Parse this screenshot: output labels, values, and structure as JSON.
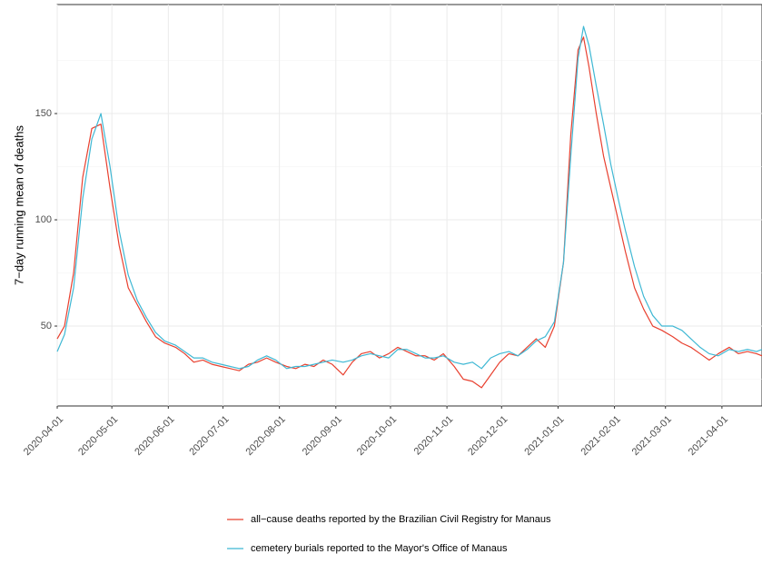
{
  "chart_data": {
    "type": "line",
    "y_label": "7−day running mean of deaths",
    "xlim": [
      "2020-04-01",
      "2021-04-23"
    ],
    "xticks": [
      "2020-04-01",
      "2020-05-01",
      "2020-06-01",
      "2020-07-01",
      "2020-08-01",
      "2020-09-01",
      "2020-10-01",
      "2020-11-01",
      "2020-12-01",
      "2021-01-01",
      "2021-02-01",
      "2021-03-01",
      "2021-04-01"
    ],
    "ylim": [
      12.4,
      201.3
    ],
    "yticks": [
      50,
      100,
      150
    ],
    "minor_yticks": [
      25,
      75,
      125,
      175
    ],
    "grid": true,
    "legend_position": "bottom",
    "x": [
      "2020-04-01",
      "2020-04-05",
      "2020-04-10",
      "2020-04-15",
      "2020-04-20",
      "2020-04-25",
      "2020-04-30",
      "2020-05-05",
      "2020-05-10",
      "2020-05-15",
      "2020-05-20",
      "2020-05-25",
      "2020-05-30",
      "2020-06-05",
      "2020-06-10",
      "2020-06-15",
      "2020-06-20",
      "2020-06-25",
      "2020-06-30",
      "2020-07-05",
      "2020-07-10",
      "2020-07-15",
      "2020-07-20",
      "2020-07-25",
      "2020-07-30",
      "2020-08-05",
      "2020-08-10",
      "2020-08-15",
      "2020-08-20",
      "2020-08-25",
      "2020-08-30",
      "2020-09-05",
      "2020-09-10",
      "2020-09-15",
      "2020-09-20",
      "2020-09-25",
      "2020-09-30",
      "2020-10-05",
      "2020-10-10",
      "2020-10-15",
      "2020-10-20",
      "2020-10-25",
      "2020-10-30",
      "2020-11-05",
      "2020-11-10",
      "2020-11-15",
      "2020-11-20",
      "2020-11-25",
      "2020-11-30",
      "2020-12-05",
      "2020-12-10",
      "2020-12-15",
      "2020-12-20",
      "2020-12-25",
      "2020-12-30",
      "2021-01-04",
      "2021-01-08",
      "2021-01-12",
      "2021-01-15",
      "2021-01-18",
      "2021-01-22",
      "2021-01-26",
      "2021-01-30",
      "2021-02-03",
      "2021-02-07",
      "2021-02-12",
      "2021-02-17",
      "2021-02-22",
      "2021-02-27",
      "2021-03-05",
      "2021-03-10",
      "2021-03-15",
      "2021-03-20",
      "2021-03-25",
      "2021-03-30",
      "2021-04-05",
      "2021-04-10",
      "2021-04-15",
      "2021-04-20",
      "2021-04-23"
    ],
    "series": [
      {
        "name": "all−cause deaths reported by the Brazilian Civil Registry for Manaus",
        "color": "#e8402f",
        "values": [
          44,
          50,
          75,
          120,
          143,
          145,
          115,
          88,
          68,
          60,
          52,
          45,
          42,
          40,
          37,
          33,
          34,
          32,
          31,
          30,
          29,
          32,
          33,
          35,
          33,
          31,
          30,
          32,
          31,
          34,
          32,
          27,
          33,
          37,
          38,
          35,
          37,
          40,
          38,
          36,
          36,
          34,
          37,
          31,
          25,
          24,
          21,
          27,
          33,
          37,
          36,
          40,
          44,
          40,
          50,
          80,
          140,
          180,
          186,
          172,
          150,
          130,
          115,
          100,
          85,
          68,
          58,
          50,
          48,
          45,
          42,
          40,
          37,
          34,
          37,
          40,
          37,
          38,
          37,
          36
        ]
      },
      {
        "name": "cemetery burials reported to the Mayor's Office of Manaus",
        "color": "#3fb8d4",
        "values": [
          38,
          46,
          68,
          110,
          138,
          150,
          125,
          95,
          74,
          62,
          54,
          47,
          43,
          41,
          38,
          35,
          35,
          33,
          32,
          31,
          30,
          31,
          34,
          36,
          34,
          30,
          31,
          31,
          32,
          33,
          34,
          33,
          34,
          36,
          37,
          36,
          35,
          39,
          39,
          37,
          35,
          35,
          36,
          33,
          32,
          33,
          30,
          35,
          37,
          38,
          36,
          39,
          43,
          45,
          52,
          80,
          130,
          176,
          191,
          182,
          163,
          145,
          126,
          110,
          95,
          78,
          64,
          55,
          50,
          50,
          48,
          44,
          40,
          37,
          36,
          39,
          38,
          39,
          38,
          39
        ]
      }
    ]
  }
}
